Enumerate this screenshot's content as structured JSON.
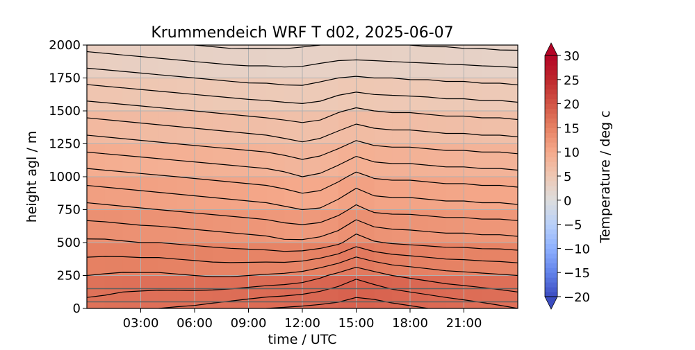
{
  "chart_data": {
    "type": "heatmap",
    "title": "Krummendeich WRF T d02, 2025-06-07",
    "xlabel": "time / UTC",
    "ylabel": "height agl / m",
    "xlim": [
      0,
      24
    ],
    "ylim": [
      0,
      2000
    ],
    "x_ticks": [
      3,
      6,
      9,
      12,
      15,
      18,
      21
    ],
    "x_tick_labels": [
      "03:00",
      "06:00",
      "09:00",
      "12:00",
      "15:00",
      "18:00",
      "21:00"
    ],
    "y_ticks": [
      0,
      250,
      500,
      750,
      1000,
      1250,
      1500,
      1750,
      2000
    ],
    "y_tick_labels": [
      "0",
      "250",
      "500",
      "750",
      "1000",
      "1250",
      "1500",
      "1750",
      "2000"
    ],
    "grid": true,
    "colorbar": {
      "label": "Temperature / deg c",
      "min": -20,
      "max": 30,
      "ticks": [
        -20,
        -15,
        -10,
        -5,
        0,
        5,
        10,
        15,
        20,
        25,
        30
      ],
      "tick_labels": [
        "−20",
        "−15",
        "−10",
        "−5",
        "0",
        "5",
        "10",
        "15",
        "20",
        "25",
        "30"
      ],
      "colormap": "coolwarm",
      "extend": "both"
    },
    "horizontal_lines_m": [
      50,
      150
    ],
    "time_hours": [
      0,
      1,
      2,
      3,
      4,
      5,
      6,
      7,
      8,
      9,
      10,
      11,
      12,
      13,
      14,
      15,
      16,
      17,
      18,
      19,
      20,
      21,
      22,
      23,
      24
    ],
    "height_levels_m": [
      0,
      250,
      500,
      750,
      1000,
      1250,
      1500,
      1750,
      2000
    ],
    "temperature_c": [
      [
        17.5,
        17.6,
        17.8,
        17.9,
        18.0,
        18.1,
        18.2,
        18.4,
        18.6,
        18.8,
        19.0,
        19.1,
        19.2,
        19.3,
        19.4,
        19.6,
        19.6,
        19.4,
        19.2,
        19.0,
        18.8,
        18.6,
        18.4,
        18.2,
        18.0
      ],
      [
        16.0,
        16.1,
        16.2,
        16.2,
        16.2,
        16.1,
        16.0,
        15.9,
        15.9,
        16.0,
        16.1,
        16.2,
        16.4,
        16.8,
        17.3,
        17.8,
        17.4,
        17.0,
        16.8,
        16.6,
        16.4,
        16.3,
        16.2,
        16.1,
        16.0
      ],
      [
        14.2,
        14.2,
        14.1,
        14.0,
        14.0,
        13.9,
        13.8,
        13.7,
        13.6,
        13.5,
        13.4,
        13.2,
        13.2,
        13.4,
        13.8,
        14.6,
        14.1,
        13.9,
        13.8,
        13.7,
        13.6,
        13.6,
        13.5,
        13.5,
        13.4
      ],
      [
        12.4,
        12.3,
        12.2,
        12.1,
        12.0,
        11.9,
        11.8,
        11.7,
        11.6,
        11.5,
        11.4,
        11.2,
        11.0,
        11.1,
        11.6,
        12.3,
        11.8,
        11.7,
        11.7,
        11.6,
        11.5,
        11.5,
        11.4,
        11.4,
        11.3
      ],
      [
        10.5,
        10.4,
        10.3,
        10.2,
        10.1,
        10.0,
        9.9,
        9.8,
        9.7,
        9.6,
        9.5,
        9.3,
        9.0,
        9.2,
        9.7,
        10.3,
        9.9,
        9.8,
        9.8,
        9.7,
        9.6,
        9.6,
        9.5,
        9.5,
        9.4
      ],
      [
        8.5,
        8.4,
        8.3,
        8.2,
        8.1,
        8.0,
        7.9,
        7.8,
        7.7,
        7.6,
        7.5,
        7.3,
        7.1,
        7.3,
        7.7,
        8.2,
        7.9,
        7.8,
        7.8,
        7.7,
        7.6,
        7.6,
        7.5,
        7.5,
        7.4
      ],
      [
        6.6,
        6.5,
        6.4,
        6.3,
        6.2,
        6.1,
        6.0,
        5.9,
        5.8,
        5.7,
        5.6,
        5.5,
        5.4,
        5.5,
        5.9,
        6.2,
        6.0,
        5.9,
        5.9,
        5.8,
        5.7,
        5.7,
        5.6,
        5.6,
        5.5
      ],
      [
        4.6,
        4.5,
        4.4,
        4.3,
        4.2,
        4.1,
        4.0,
        3.9,
        3.8,
        3.7,
        3.7,
        3.6,
        3.6,
        3.8,
        4.0,
        4.1,
        4.0,
        4.0,
        3.9,
        3.9,
        3.8,
        3.8,
        3.7,
        3.7,
        3.6
      ],
      [
        2.6,
        2.5,
        2.4,
        2.3,
        2.2,
        2.1,
        2.0,
        1.9,
        1.8,
        1.8,
        1.8,
        1.8,
        1.9,
        2.0,
        2.1,
        2.1,
        2.1,
        2.0,
        2.0,
        1.9,
        1.9,
        1.8,
        1.8,
        1.7,
        1.7
      ]
    ]
  }
}
